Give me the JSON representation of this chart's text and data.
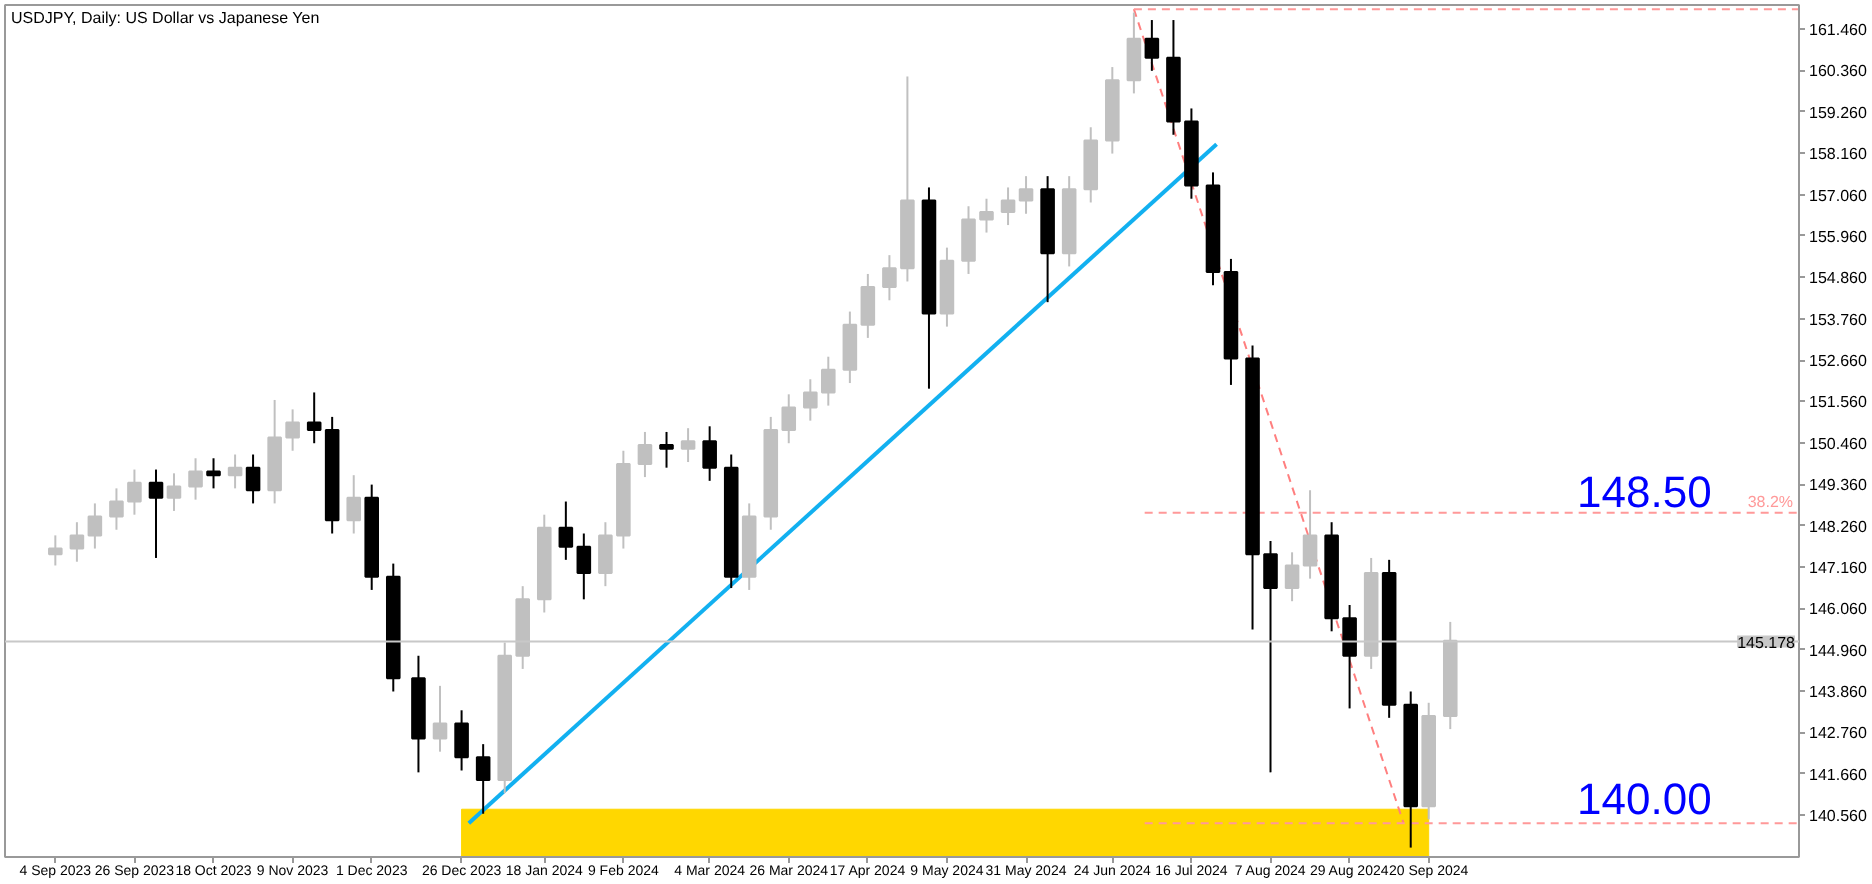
{
  "chart_data": {
    "type": "candlestick",
    "title": "USDJPY, Daily:  US Dollar vs Japanese Yen",
    "xlim": [
      "2023-08-21",
      "2025-01-01"
    ],
    "ylim": [
      139.45,
      162.1
    ],
    "xticks": [
      {
        "value": "2023-09-04",
        "label": "4 Sep 2023"
      },
      {
        "value": "2023-09-26",
        "label": "26 Sep 2023"
      },
      {
        "value": "2023-10-18",
        "label": "18 Oct 2023"
      },
      {
        "value": "2023-11-09",
        "label": "9 Nov 2023"
      },
      {
        "value": "2023-12-01",
        "label": "1 Dec 2023"
      },
      {
        "value": "2023-12-26",
        "label": "26 Dec 2023"
      },
      {
        "value": "2024-01-18",
        "label": "18 Jan 2024"
      },
      {
        "value": "2024-02-09",
        "label": "9 Feb 2024"
      },
      {
        "value": "2024-03-04",
        "label": "4 Mar 2024"
      },
      {
        "value": "2024-03-26",
        "label": "26 Mar 2024"
      },
      {
        "value": "2024-04-17",
        "label": "17 Apr 2024"
      },
      {
        "value": "2024-05-09",
        "label": "9 May 2024"
      },
      {
        "value": "2024-05-31",
        "label": "31 May 2024"
      },
      {
        "value": "2024-06-24",
        "label": "24 Jun 2024"
      },
      {
        "value": "2024-07-16",
        "label": "16 Jul 2024"
      },
      {
        "value": "2024-08-07",
        "label": "7 Aug 2024"
      },
      {
        "value": "2024-08-29",
        "label": "29 Aug 2024"
      },
      {
        "value": "2024-09-20",
        "label": "20 Sep 2024"
      }
    ],
    "yticks": [
      {
        "value": 161.46,
        "label": "161.460"
      },
      {
        "value": 160.36,
        "label": "160.360"
      },
      {
        "value": 159.26,
        "label": "159.260"
      },
      {
        "value": 158.16,
        "label": "158.160"
      },
      {
        "value": 157.06,
        "label": "157.060"
      },
      {
        "value": 155.96,
        "label": "155.960"
      },
      {
        "value": 154.86,
        "label": "154.860"
      },
      {
        "value": 153.76,
        "label": "153.760"
      },
      {
        "value": 152.66,
        "label": "152.660"
      },
      {
        "value": 151.56,
        "label": "151.560"
      },
      {
        "value": 150.46,
        "label": "150.460"
      },
      {
        "value": 149.36,
        "label": "149.360"
      },
      {
        "value": 148.26,
        "label": "148.260"
      },
      {
        "value": 147.16,
        "label": "147.160"
      },
      {
        "value": 146.06,
        "label": "146.060"
      },
      {
        "value": 144.96,
        "label": "144.960"
      },
      {
        "value": 143.86,
        "label": "143.860"
      },
      {
        "value": 142.76,
        "label": "142.760"
      },
      {
        "value": 141.66,
        "label": "141.660"
      },
      {
        "value": 140.56,
        "label": "140.560"
      }
    ],
    "x": [
      "2023-09-04",
      "2023-09-10",
      "2023-09-15",
      "2023-09-21",
      "2023-09-26",
      "2023-10-02",
      "2023-10-07",
      "2023-10-13",
      "2023-10-18",
      "2023-10-24",
      "2023-10-29",
      "2023-11-04",
      "2023-11-09",
      "2023-11-15",
      "2023-11-20",
      "2023-11-26",
      "2023-12-01",
      "2023-12-07",
      "2023-12-14",
      "2023-12-20",
      "2023-12-26",
      "2024-01-01",
      "2024-01-07",
      "2024-01-12",
      "2024-01-18",
      "2024-01-24",
      "2024-01-29",
      "2024-02-04",
      "2024-02-09",
      "2024-02-15",
      "2024-02-21",
      "2024-02-27",
      "2024-03-04",
      "2024-03-10",
      "2024-03-15",
      "2024-03-21",
      "2024-03-26",
      "2024-04-01",
      "2024-04-06",
      "2024-04-12",
      "2024-04-17",
      "2024-04-23",
      "2024-04-28",
      "2024-05-04",
      "2024-05-09",
      "2024-05-15",
      "2024-05-20",
      "2024-05-26",
      "2024-05-31",
      "2024-06-06",
      "2024-06-12",
      "2024-06-18",
      "2024-06-24",
      "2024-06-30",
      "2024-07-05",
      "2024-07-11",
      "2024-07-16",
      "2024-07-22",
      "2024-07-27",
      "2024-08-02",
      "2024-08-07",
      "2024-08-13",
      "2024-08-18",
      "2024-08-24",
      "2024-08-29",
      "2024-09-04",
      "2024-09-09",
      "2024-09-15",
      "2024-09-20",
      "2024-09-26"
    ],
    "ohlc": [
      [
        147.5,
        148.0,
        147.2,
        147.65
      ],
      [
        147.65,
        148.35,
        147.3,
        148.0
      ],
      [
        148.0,
        148.85,
        147.65,
        148.5
      ],
      [
        148.5,
        149.25,
        148.15,
        148.9
      ],
      [
        148.9,
        149.75,
        148.55,
        149.4
      ],
      [
        149.4,
        149.75,
        147.4,
        149.0
      ],
      [
        149.0,
        149.65,
        148.65,
        149.3
      ],
      [
        149.3,
        150.05,
        148.95,
        149.7
      ],
      [
        149.7,
        150.05,
        149.25,
        149.6
      ],
      [
        149.6,
        150.15,
        149.25,
        149.8
      ],
      [
        149.8,
        150.15,
        148.85,
        149.2
      ],
      [
        149.2,
        151.6,
        148.85,
        150.6
      ],
      [
        150.6,
        151.35,
        150.25,
        151.0
      ],
      [
        151.0,
        151.8,
        150.45,
        150.8
      ],
      [
        150.8,
        151.15,
        148.05,
        148.4
      ],
      [
        148.4,
        149.6,
        148.05,
        149.0
      ],
      [
        149.0,
        149.35,
        146.55,
        146.9
      ],
      [
        146.9,
        147.25,
        143.85,
        144.2
      ],
      [
        144.2,
        144.8,
        141.7,
        142.6
      ],
      [
        142.6,
        144.0,
        142.25,
        143.0
      ],
      [
        143.0,
        143.35,
        141.75,
        142.1
      ],
      [
        142.1,
        142.45,
        140.6,
        141.5
      ],
      [
        141.5,
        145.15,
        141.15,
        144.8
      ],
      [
        144.8,
        146.65,
        144.45,
        146.3
      ],
      [
        146.3,
        148.55,
        145.95,
        148.2
      ],
      [
        148.2,
        148.9,
        147.35,
        147.7
      ],
      [
        147.7,
        148.05,
        146.3,
        147.0
      ],
      [
        147.0,
        148.35,
        146.65,
        148.0
      ],
      [
        148.0,
        150.25,
        147.65,
        149.9
      ],
      [
        149.9,
        150.75,
        149.55,
        150.4
      ],
      [
        150.4,
        150.75,
        149.8,
        150.3
      ],
      [
        150.3,
        150.85,
        149.95,
        150.5
      ],
      [
        150.5,
        150.9,
        149.45,
        149.8
      ],
      [
        149.8,
        150.15,
        146.6,
        146.9
      ],
      [
        146.9,
        148.85,
        146.55,
        148.5
      ],
      [
        148.5,
        151.15,
        148.15,
        150.8
      ],
      [
        150.8,
        151.75,
        150.45,
        151.4
      ],
      [
        151.4,
        152.15,
        151.05,
        151.8
      ],
      [
        151.8,
        152.75,
        151.45,
        152.4
      ],
      [
        152.4,
        153.95,
        152.05,
        153.6
      ],
      [
        153.6,
        154.95,
        153.25,
        154.6
      ],
      [
        154.6,
        155.45,
        154.25,
        155.1
      ],
      [
        155.1,
        160.2,
        154.75,
        156.9
      ],
      [
        156.9,
        157.25,
        151.9,
        153.9
      ],
      [
        153.9,
        155.65,
        153.55,
        155.3
      ],
      [
        155.3,
        156.75,
        154.95,
        156.4
      ],
      [
        156.4,
        156.95,
        156.05,
        156.6
      ],
      [
        156.6,
        157.25,
        156.25,
        156.9
      ],
      [
        156.9,
        157.55,
        156.55,
        157.2
      ],
      [
        157.2,
        157.55,
        154.2,
        155.5
      ],
      [
        155.5,
        157.55,
        155.15,
        157.2
      ],
      [
        157.2,
        158.85,
        156.85,
        158.5
      ],
      [
        158.5,
        160.45,
        158.15,
        160.1
      ],
      [
        160.1,
        161.9,
        159.75,
        161.2
      ],
      [
        161.2,
        161.7,
        160.35,
        160.7
      ],
      [
        160.7,
        161.7,
        158.65,
        159.0
      ],
      [
        159.0,
        159.35,
        156.95,
        157.3
      ],
      [
        157.3,
        157.65,
        154.65,
        155.0
      ],
      [
        155.0,
        155.35,
        152.0,
        152.7
      ],
      [
        152.7,
        153.05,
        145.5,
        147.5
      ],
      [
        147.5,
        147.85,
        141.7,
        146.6
      ],
      [
        146.6,
        147.55,
        146.25,
        147.2
      ],
      [
        147.2,
        149.2,
        146.85,
        148.0
      ],
      [
        148.0,
        148.35,
        145.45,
        145.8
      ],
      [
        145.8,
        146.15,
        143.4,
        144.8
      ],
      [
        144.8,
        147.4,
        144.45,
        147.0
      ],
      [
        147.0,
        147.35,
        143.15,
        143.5
      ],
      [
        143.5,
        143.85,
        139.7,
        140.8
      ],
      [
        140.8,
        143.55,
        140.45,
        143.2
      ],
      [
        143.2,
        145.7,
        142.85,
        145.2
      ]
    ],
    "colors": [
      "#c0c0c0",
      "#c0c0c0",
      "#c0c0c0",
      "#c0c0c0",
      "#c0c0c0",
      "#000000",
      "#c0c0c0",
      "#c0c0c0",
      "#000000",
      "#c0c0c0",
      "#000000",
      "#c0c0c0",
      "#c0c0c0",
      "#000000",
      "#000000",
      "#c0c0c0",
      "#000000",
      "#000000",
      "#000000",
      "#c0c0c0",
      "#000000",
      "#000000",
      "#c0c0c0",
      "#c0c0c0",
      "#c0c0c0",
      "#000000",
      "#000000",
      "#c0c0c0",
      "#c0c0c0",
      "#c0c0c0",
      "#000000",
      "#c0c0c0",
      "#000000",
      "#000000",
      "#c0c0c0",
      "#c0c0c0",
      "#c0c0c0",
      "#c0c0c0",
      "#c0c0c0",
      "#c0c0c0",
      "#c0c0c0",
      "#c0c0c0",
      "#c0c0c0",
      "#000000",
      "#c0c0c0",
      "#c0c0c0",
      "#c0c0c0",
      "#c0c0c0",
      "#c0c0c0",
      "#000000",
      "#c0c0c0",
      "#c0c0c0",
      "#c0c0c0",
      "#c0c0c0",
      "#000000",
      "#000000",
      "#000000",
      "#000000",
      "#000000",
      "#000000",
      "#000000",
      "#c0c0c0",
      "#c0c0c0",
      "#000000",
      "#000000",
      "#c0c0c0",
      "#000000",
      "#000000",
      "#c0c0c0",
      "#c0c0c0"
    ],
    "series": [
      {
        "type": "area",
        "color": "#ffd700",
        "x": [
          "2023-12-26",
          "2024-09-20"
        ],
        "values": [
          140.72,
          140.72
        ]
      },
      {
        "type": "line",
        "color": "#12b0f0",
        "line_style": "solid",
        "x": [
          "2023-12-28",
          "2024-07-23"
        ],
        "values": [
          140.35,
          158.4
        ]
      },
      {
        "type": "line",
        "color": "#ff7f7f",
        "line_style": "dashed",
        "x": [
          "2024-06-30",
          "2024-09-13"
        ],
        "values": [
          161.99,
          140.35
        ]
      },
      {
        "type": "line",
        "color": "#ff9999",
        "line_style": "dashed",
        "x": [
          "2024-06-30",
          "2025-01-01"
        ],
        "values": [
          161.99,
          161.99
        ]
      },
      {
        "type": "line",
        "color": "#ff9999",
        "line_style": "dashed",
        "name": "38.2%",
        "x": [
          "2024-07-03",
          "2025-01-01"
        ],
        "values": [
          148.6,
          148.6
        ]
      },
      {
        "type": "line",
        "color": "#ff9999",
        "line_style": "dashed",
        "x": [
          "2024-07-03",
          "2025-01-01"
        ],
        "values": [
          140.35,
          140.35
        ]
      }
    ],
    "ref_lines": [
      {
        "axis": "y",
        "value": 145.178,
        "label": "145.178",
        "color": "#c8c8c8",
        "line_style": "solid"
      }
    ],
    "annotations": [
      {
        "text": "148.50",
        "x": "2024-11-19",
        "y": 148.75
      },
      {
        "text": "140.00",
        "x": "2024-11-19",
        "y": 140.6
      }
    ]
  }
}
